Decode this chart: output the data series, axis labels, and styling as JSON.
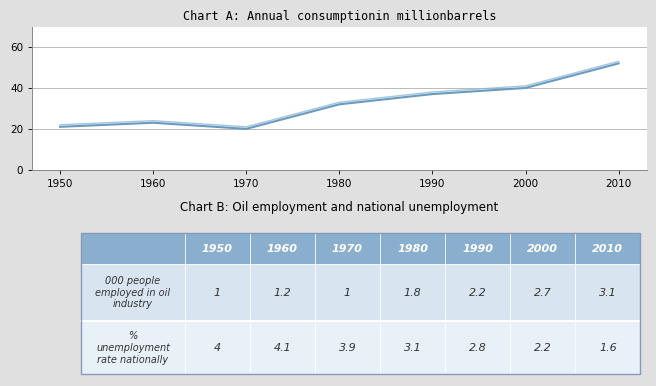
{
  "chart_a_title": "Chart A: Annual consumptionin millionbarrels",
  "chart_b_title": "Chart B: Oil employment and national unemployment",
  "years": [
    1950,
    1960,
    1970,
    1980,
    1990,
    2000,
    2010
  ],
  "oil_consumption": [
    21,
    23,
    20,
    32,
    37,
    40,
    52
  ],
  "oil_consumption2": [
    22,
    24,
    21,
    33,
    38,
    41,
    53
  ],
  "line_color": "#6a9abf",
  "line_color2": "#8ab8d8",
  "ylim": [
    0,
    70
  ],
  "yticks": [
    0,
    20,
    40,
    60
  ],
  "table_header_years": [
    "1950",
    "1960",
    "1970",
    "1980",
    "1990",
    "2000",
    "2010"
  ],
  "row1_label": "000 people\nemployed in oil\nindustry",
  "row2_label": "%\nunemployment\nrate nationally",
  "row1_values": [
    "1",
    "1.2",
    "1",
    "1.8",
    "2.2",
    "2.7",
    "3.1"
  ],
  "row2_values": [
    "4",
    "4.1",
    "3.9",
    "3.1",
    "2.8",
    "2.2",
    "1.6"
  ],
  "table_header_color": "#8aaece",
  "table_row1_color": "#d8e4f0",
  "table_row2_color": "#e8f0f8",
  "figure_bg": "#e0e0e0",
  "chart_a_bg": "white",
  "chart_b_bg": "#f0f0f0"
}
